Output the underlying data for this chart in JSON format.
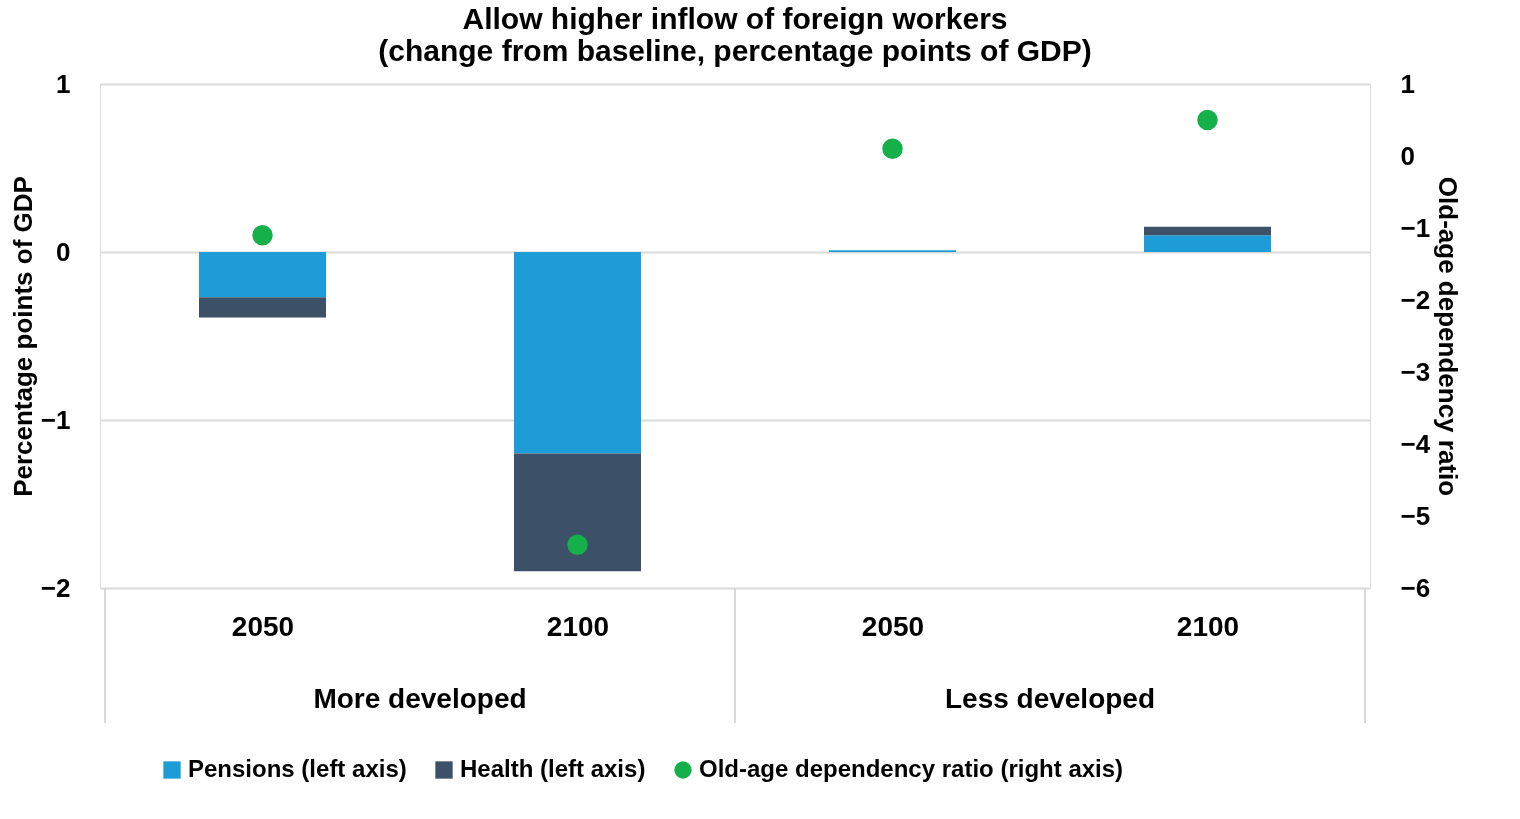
{
  "chart_data": {
    "type": "bar",
    "title": [
      "Allow higher inflow of foreign workers",
      "(change from baseline, percentage points of GDP)"
    ],
    "categories": [
      "2050",
      "2100",
      "2050",
      "2100"
    ],
    "stacked": true,
    "series": [
      {
        "name": "Pensions (left axis)",
        "color": "#1e9cd7",
        "values": [
          -0.27,
          -1.2,
          0.01,
          0.1
        ]
      },
      {
        "name": "Health (left axis)",
        "color": "#3c5068",
        "values": [
          -0.12,
          -0.7,
          0.0,
          0.05
        ]
      },
      {
        "name": "Old-age dependency ratio (right axis)",
        "type": "scatter",
        "axis": "y2",
        "color": "#16b04a",
        "values": [
          -1.1,
          -5.4,
          0.1,
          0.5
        ]
      }
    ],
    "ylabel": "Percentage points of GDP",
    "y2label": "Old-age dependency ratio",
    "ylim": [
      -2,
      1
    ],
    "yticks": [
      -2,
      -1,
      0,
      1
    ],
    "y2lim": [
      -6,
      1
    ],
    "y2ticks": [
      -6,
      -5,
      -4,
      -3,
      -2,
      -1,
      0,
      1
    ],
    "annotations": [
      "More developed",
      "Less developed"
    ],
    "grid": "y",
    "legend": "bottom",
    "marker": "circle"
  }
}
